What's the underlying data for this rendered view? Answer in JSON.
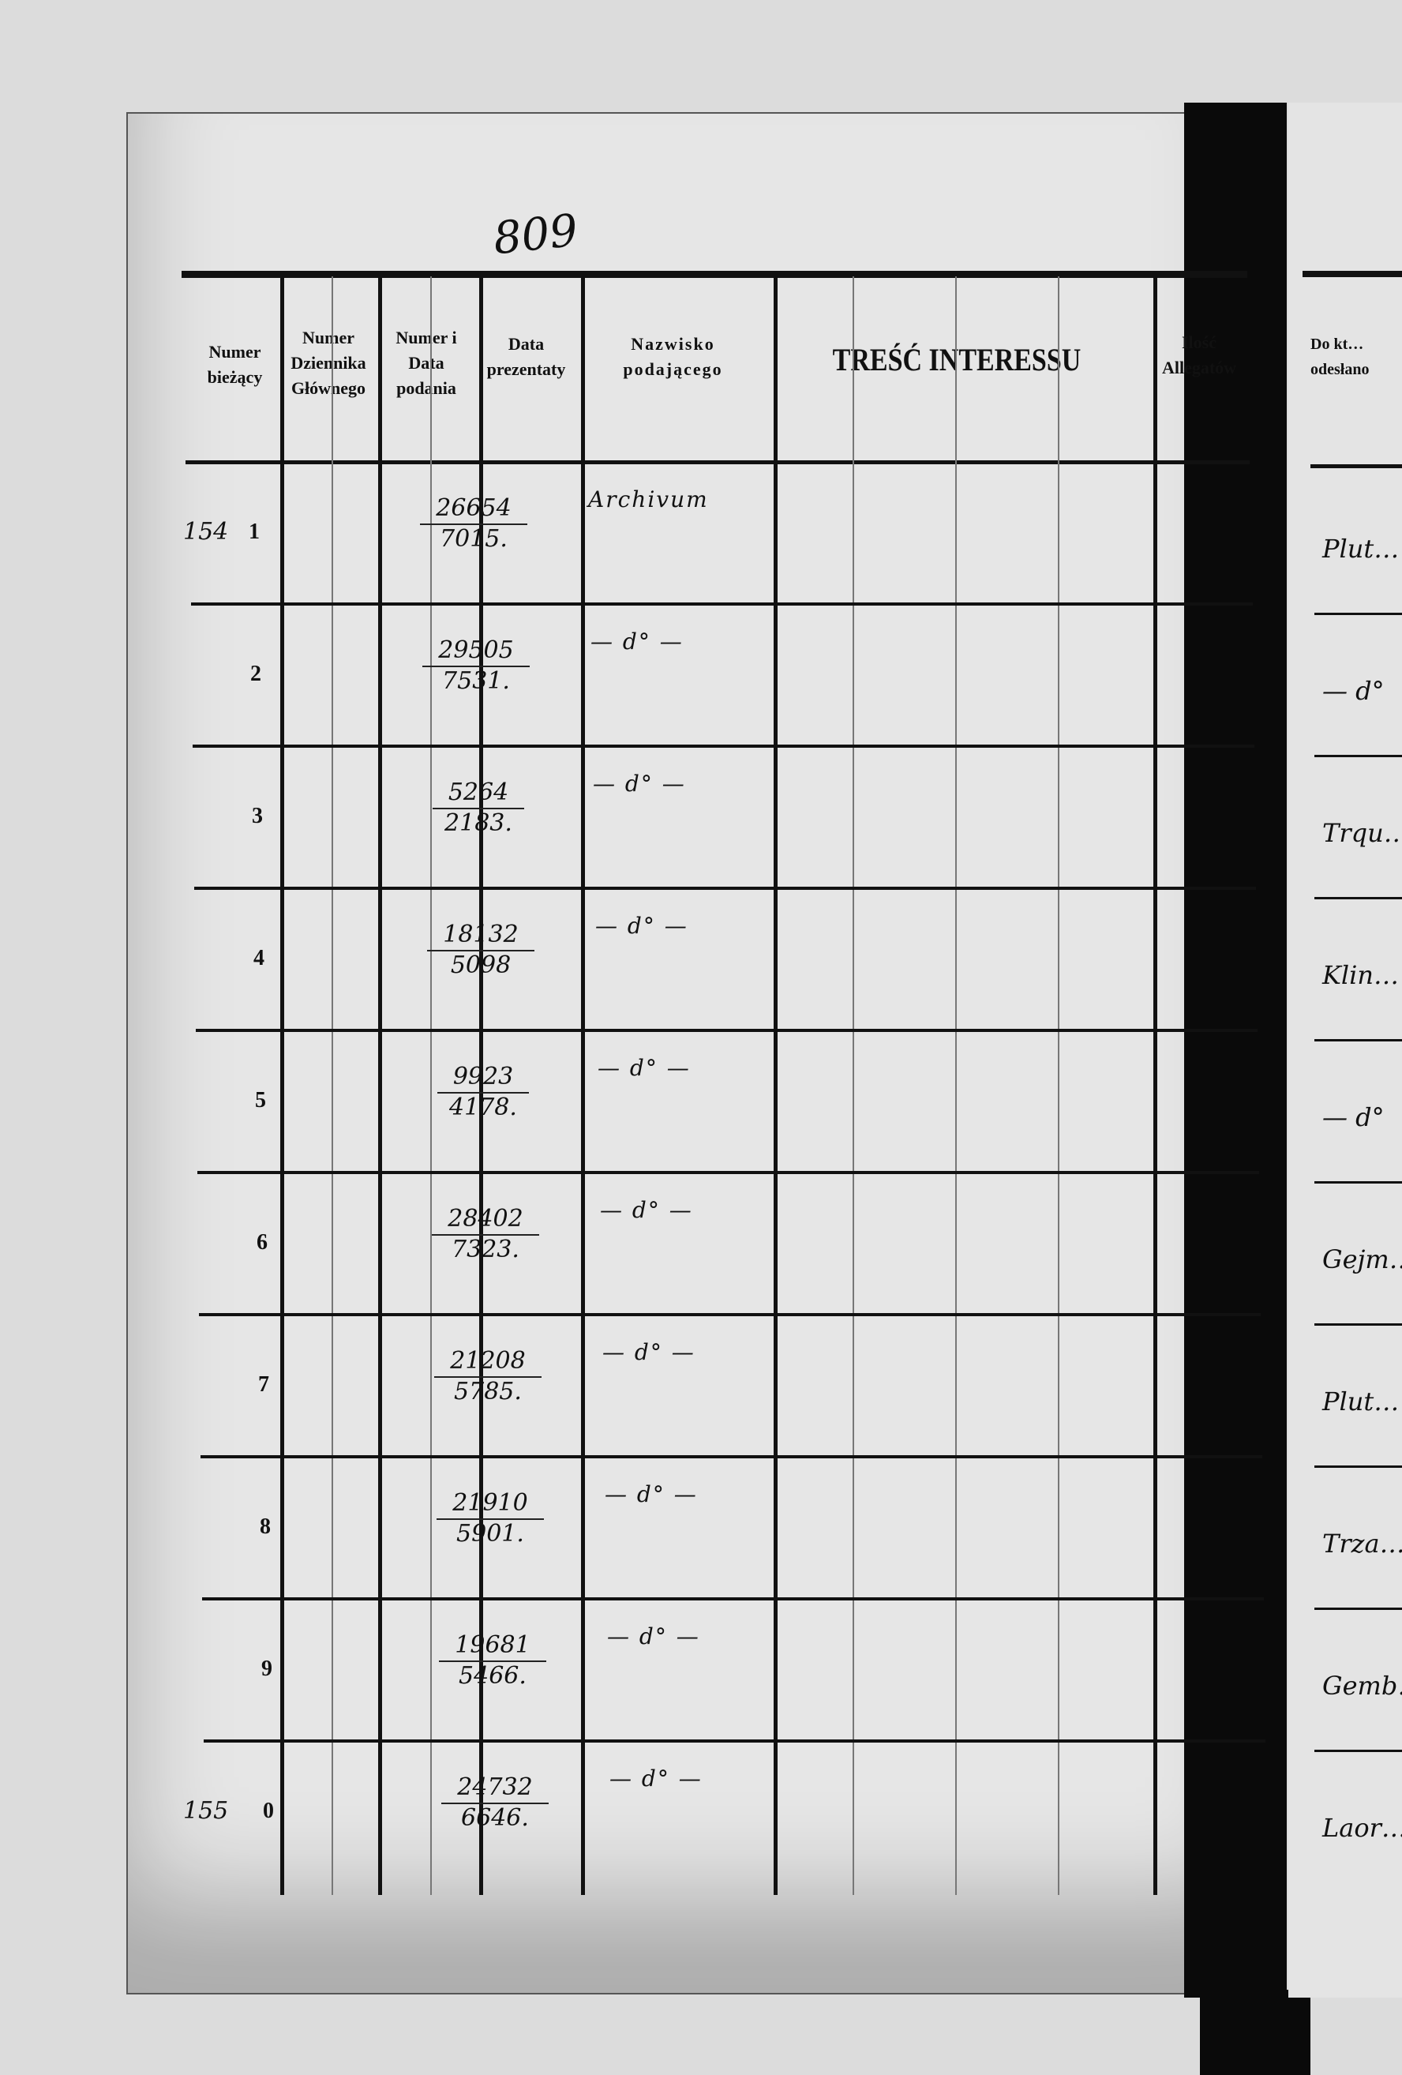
{
  "page_number": "809",
  "headers": {
    "col1": "Numer bieżący",
    "col2": "Numer Dziennika Głównego",
    "col3": "Numer i Data podania",
    "col4": "Data prezentaty",
    "col5": "Nazwisko podającego",
    "col6": "TREŚĆ INTERESSU",
    "col7": "Ilość Allegatów",
    "right_page_col": "Do kt… odesłano"
  },
  "rows": [
    {
      "hand_prefix": "154",
      "printed": "1",
      "num_top": "26654",
      "num_bottom": "7015.",
      "name": "Archivum",
      "right": "Plut…"
    },
    {
      "hand_prefix": "",
      "printed": "2",
      "num_top": "29505",
      "num_bottom": "7531.",
      "name": "— d° —",
      "right": "— d°"
    },
    {
      "hand_prefix": "",
      "printed": "3",
      "num_top": "5264",
      "num_bottom": "2183.",
      "name": "— d° —",
      "right": "Trqu…"
    },
    {
      "hand_prefix": "",
      "printed": "4",
      "num_top": "18132",
      "num_bottom": "5098",
      "name": "— d° —",
      "right": "Klin…"
    },
    {
      "hand_prefix": "",
      "printed": "5",
      "num_top": "9923",
      "num_bottom": "4178.",
      "name": "— d° —",
      "right": "— d°"
    },
    {
      "hand_prefix": "",
      "printed": "6",
      "num_top": "28402",
      "num_bottom": "7323.",
      "name": "— d° —",
      "right": "Gejm…"
    },
    {
      "hand_prefix": "",
      "printed": "7",
      "num_top": "21208",
      "num_bottom": "5785.",
      "name": "— d° —",
      "right": "Plut…"
    },
    {
      "hand_prefix": "",
      "printed": "8",
      "num_top": "21910",
      "num_bottom": "5901.",
      "name": "— d° —",
      "right": "Trza…"
    },
    {
      "hand_prefix": "",
      "printed": "9",
      "num_top": "19681",
      "num_bottom": "5466.",
      "name": "— d° —",
      "right": "Gemb…"
    },
    {
      "hand_prefix": "155",
      "printed": "0",
      "num_top": "24732",
      "num_bottom": "6646.",
      "name": "— d° —",
      "right": "Laor…"
    }
  ]
}
